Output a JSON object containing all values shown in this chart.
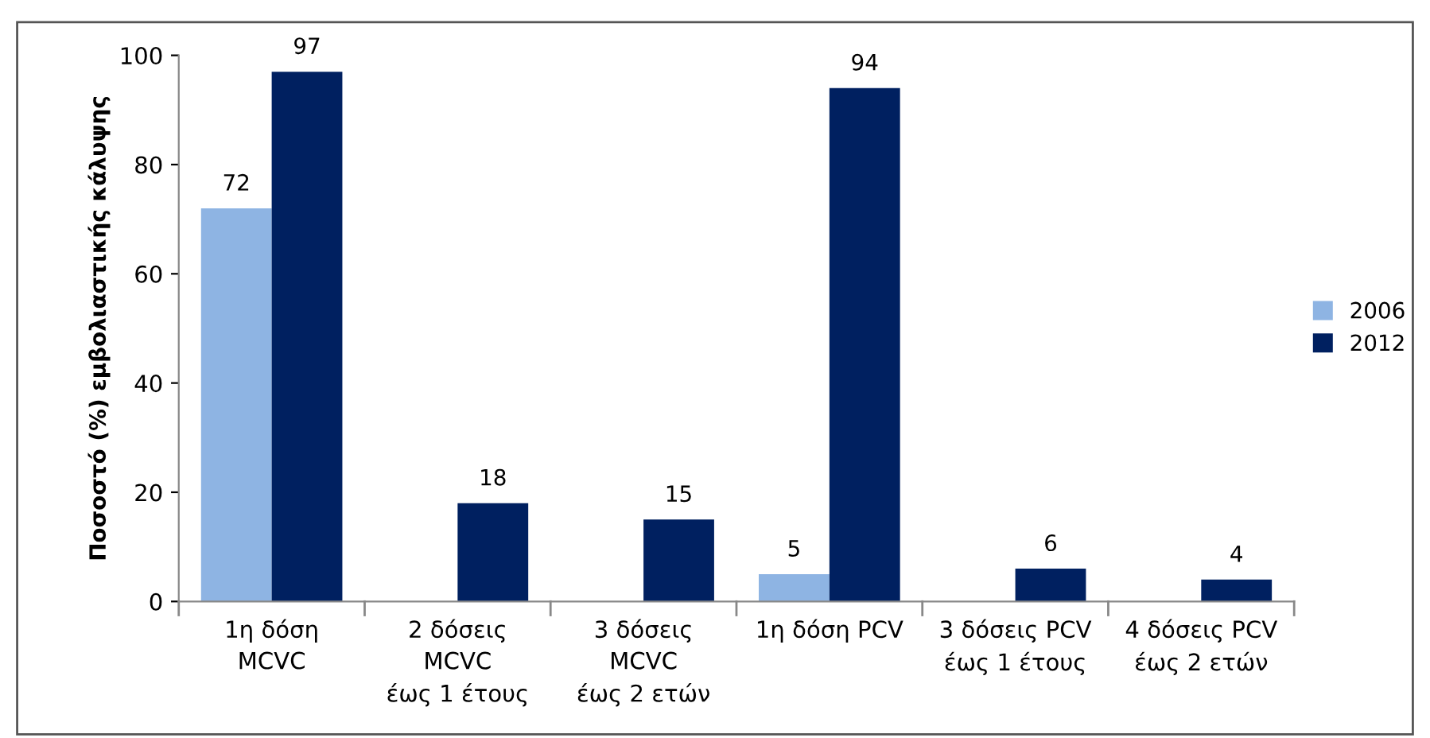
{
  "chart_data": {
    "type": "bar",
    "ylabel": "Ποσοστό (%) εμβολιαστικής κάλυψης",
    "categories": [
      "1η δόση\nMCVC",
      "2 δόσεις\nMCVC\nέως 1 έτους",
      "3 δόσεις\nMCVC\nέως 2 ετών",
      "1η δόση PCV",
      "3 δόσεις PCV\nέως 1 έτους",
      "4 δόσεις PCV\nέως 2 ετών"
    ],
    "series": [
      {
        "name": "2006",
        "color": "#8eb4e3",
        "values": [
          72,
          null,
          null,
          5,
          null,
          null
        ]
      },
      {
        "name": "2012",
        "color": "#002060",
        "values": [
          97,
          18,
          15,
          94,
          6,
          4
        ]
      }
    ],
    "ylim": [
      0,
      100
    ],
    "yticks": [
      0,
      20,
      40,
      60,
      80,
      100
    ],
    "grid": false,
    "legend": "right",
    "data_labels": true
  }
}
